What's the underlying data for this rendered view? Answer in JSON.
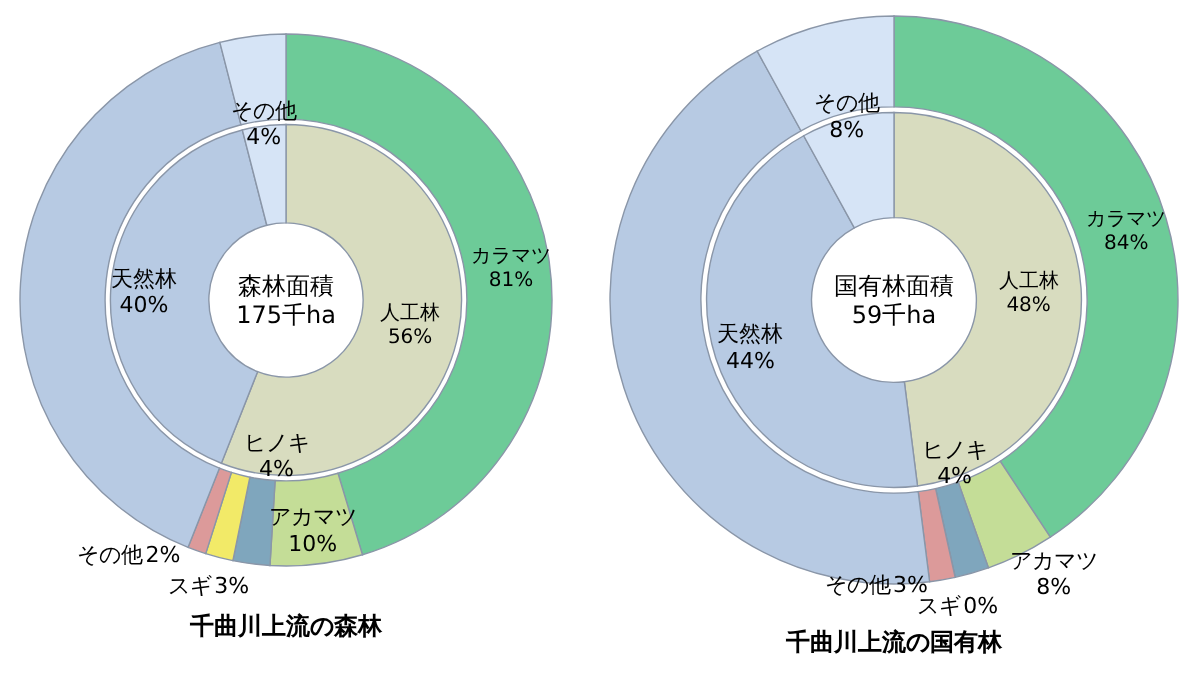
{
  "chart_data": [
    {
      "type": "other",
      "title": "千曲川上流の森林",
      "annotations": [
        "森林面積\n175千ha"
      ],
      "data_labels": true,
      "categories": [
        "人工林",
        "天然林",
        "その他",
        "カラマツ",
        "アカマツ",
        "ヒノキ",
        "スギ",
        "その他"
      ],
      "values": [
        56,
        40,
        4,
        81,
        10,
        4,
        3,
        2
      ],
      "value_labels": [
        "56%",
        "40%",
        "4%",
        "81%",
        "10%",
        "4%",
        "3%",
        "2%"
      ],
      "colors": [
        "#d8dcbf",
        "#b7cae3",
        "#d6e4f6",
        "#6dcb98",
        "#c4dd97",
        "#7fa6bd",
        "#f2ea68",
        "#dc9a9a"
      ]
    },
    {
      "type": "other",
      "title": "千曲川上流の国有林",
      "annotations": [
        "国有林面積\n59千ha"
      ],
      "data_labels": true,
      "categories": [
        "人工林",
        "天然林",
        "その他",
        "カラマツ",
        "アカマツ",
        "ヒノキ",
        "スギ",
        "その他"
      ],
      "values": [
        48,
        44,
        8,
        84,
        8,
        4,
        0,
        3
      ],
      "value_labels": [
        "48%",
        "44%",
        "8%",
        "84%",
        "8%",
        "4%",
        "0%",
        "3%"
      ],
      "colors": [
        "#d8dcbf",
        "#b7cae3",
        "#d6e4f6",
        "#6dcb98",
        "#c4dd97",
        "#7fa6bd",
        "#f2ea68",
        "#dc9a9a"
      ]
    }
  ]
}
